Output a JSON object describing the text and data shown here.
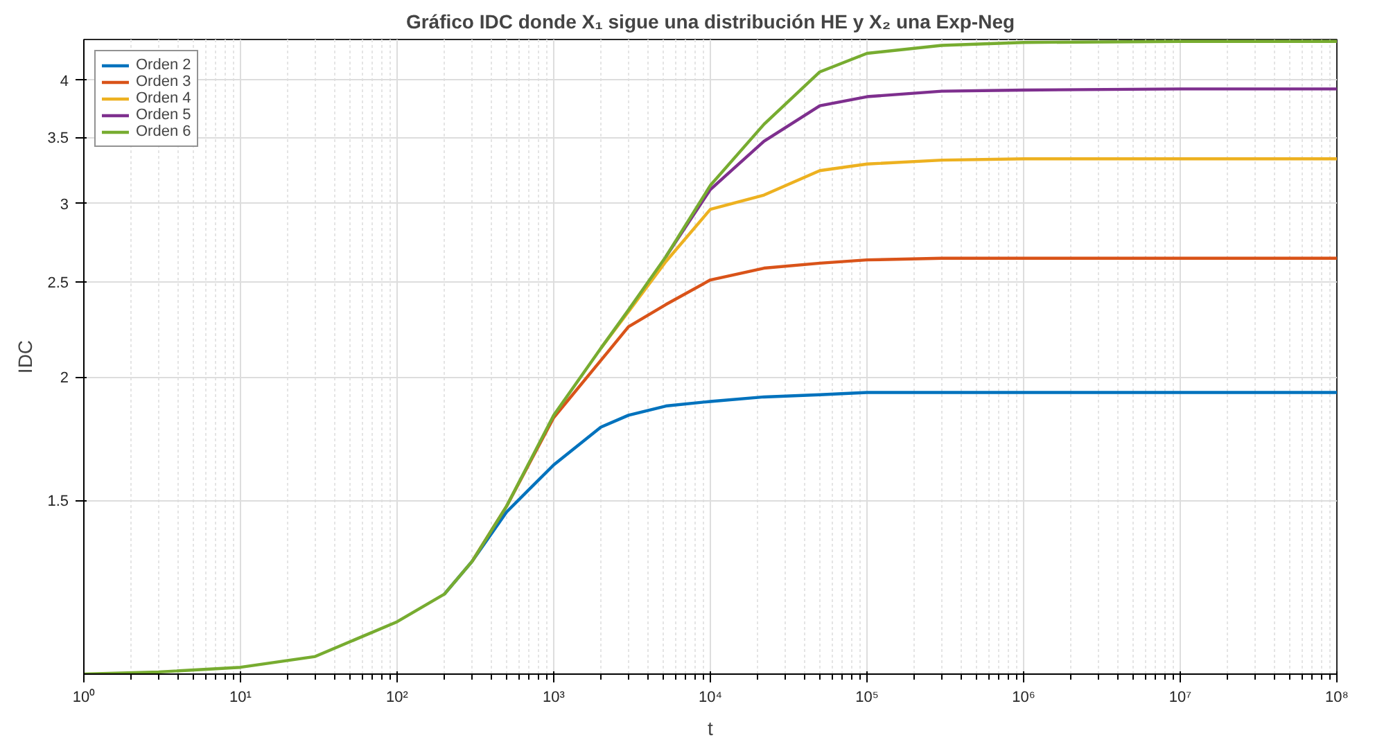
{
  "chart_data": {
    "type": "line",
    "title": "Gráfico IDC donde X₁ sigue una distribución HE y X₂ una Exp-Neg",
    "xlabel": "t",
    "ylabel": "IDC",
    "log": "xy",
    "grid": true,
    "legend": "top left",
    "marker": "none",
    "line_style": "solid",
    "x": [
      1,
      3,
      10,
      30,
      100,
      200,
      300,
      500,
      1000,
      2000,
      3000,
      5200,
      10000,
      22000,
      50000,
      100000,
      300000,
      1000000,
      10000000,
      100000000
    ],
    "xlim": [
      1,
      100000000
    ],
    "xticks": [
      {
        "value": 1,
        "label": "10⁰"
      },
      {
        "value": 10,
        "label": "10¹"
      },
      {
        "value": 100,
        "label": "10²"
      },
      {
        "value": 1000,
        "label": "10³"
      },
      {
        "value": 10000,
        "label": "10⁴"
      },
      {
        "value": 100000,
        "label": "10⁵"
      },
      {
        "value": 1000000,
        "label": "10⁶"
      },
      {
        "value": 10000000,
        "label": "10⁷"
      },
      {
        "value": 100000000,
        "label": "10⁸"
      }
    ],
    "ylim": [
      1,
      4.4
    ],
    "yticks": [
      1.5,
      2,
      2.5,
      3,
      3.5,
      4
    ],
    "series": [
      {
        "name": "Orden 2",
        "color": "#0072bd",
        "values": [
          null,
          null,
          null,
          null,
          null,
          1.205,
          1.3,
          1.46,
          1.63,
          1.78,
          1.83,
          1.87,
          1.89,
          1.91,
          1.92,
          1.93,
          1.93,
          1.93,
          1.93,
          1.93
        ]
      },
      {
        "name": "Orden 3",
        "color": "#d95319",
        "values": [
          null,
          null,
          null,
          null,
          null,
          null,
          1.3,
          1.48,
          1.82,
          2.08,
          2.25,
          2.37,
          2.51,
          2.58,
          2.61,
          2.63,
          2.64,
          2.64,
          2.64,
          2.64
        ]
      },
      {
        "name": "Orden 4",
        "color": "#edb120",
        "values": [
          null,
          null,
          null,
          null,
          null,
          null,
          null,
          null,
          null,
          2.14,
          2.33,
          2.62,
          2.96,
          3.06,
          3.24,
          3.29,
          3.32,
          3.33,
          3.33,
          3.33
        ]
      },
      {
        "name": "Orden 5",
        "color": "#7e2f8e",
        "values": [
          null,
          null,
          null,
          null,
          null,
          null,
          null,
          null,
          null,
          null,
          null,
          2.65,
          3.1,
          3.47,
          3.77,
          3.85,
          3.9,
          3.91,
          3.92,
          3.92
        ]
      },
      {
        "name": "Orden 6",
        "color": "#77ac30",
        "values": [
          1.0,
          1.005,
          1.016,
          1.042,
          1.13,
          1.205,
          1.3,
          1.48,
          1.83,
          2.14,
          2.34,
          2.65,
          3.13,
          3.61,
          4.08,
          4.26,
          4.34,
          4.37,
          4.38,
          4.38
        ]
      }
    ]
  }
}
